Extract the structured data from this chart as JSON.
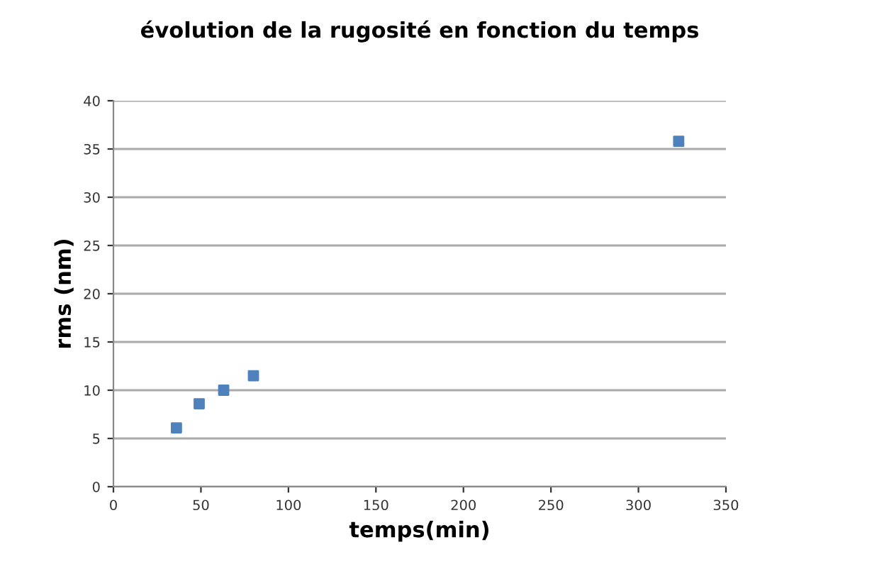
{
  "chart_data": {
    "type": "scatter",
    "title": "évolution de la rugosité en fonction du temps",
    "xlabel": "temps(min)",
    "ylabel": "rms (nm)",
    "x": [
      36,
      49,
      63,
      80,
      323
    ],
    "series": [
      {
        "color": "#4f81bd",
        "values": [
          6.1,
          8.6,
          10,
          11.5,
          35.8
        ]
      }
    ],
    "xlim": [
      0,
      350
    ],
    "xticks": [
      0,
      50,
      100,
      150,
      200,
      250,
      300,
      350
    ],
    "ylim": [
      0,
      40
    ],
    "yticks": [
      0,
      5,
      10,
      15,
      20,
      25,
      30,
      35,
      40
    ],
    "grid": "y",
    "marker": "square",
    "legend": false
  }
}
